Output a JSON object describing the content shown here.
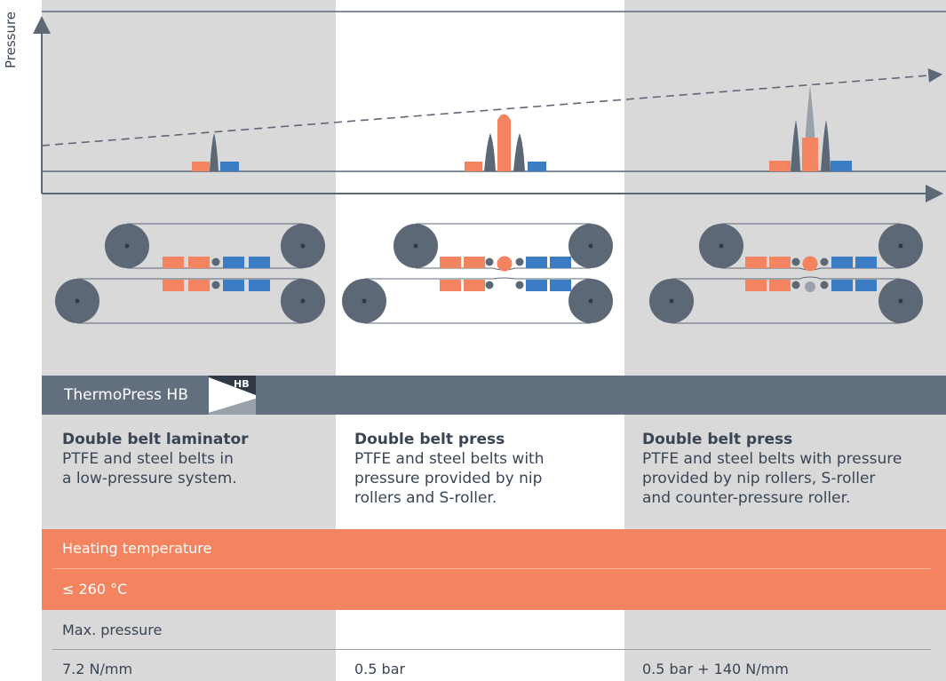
{
  "y_axis_label": "Pressure",
  "brand": {
    "name": "ThermoPress HB",
    "logo_text": "HB"
  },
  "machines": [
    {
      "title": "Double belt laminator",
      "lines": [
        "PTFE and steel belts in",
        "a low-pressure system."
      ],
      "max_pressure": "7.2 N/mm"
    },
    {
      "title": "Double belt press",
      "lines": [
        "PTFE and steel belts with",
        "pressure provided by nip",
        "rollers and S-roller."
      ],
      "max_pressure": "0.5 bar"
    },
    {
      "title": "Double belt press",
      "lines": [
        "PTFE and steel belts with pressure",
        "provided by nip rollers, S-roller",
        "and counter-pressure roller."
      ],
      "max_pressure": "0.5 bar + 140 N/mm"
    }
  ],
  "heating": {
    "label": "Heating temperature",
    "value": "≤ 260 °C"
  },
  "pressure_row": {
    "label": "Max. pressure"
  },
  "colors": {
    "grey_bg": "#d9d9d9",
    "dark": "#5d6877",
    "brand_bar": "#626f7e",
    "heating": "#f4845f",
    "cooling": "#3b7dc4",
    "peak_light": "#9aa1ab"
  }
}
